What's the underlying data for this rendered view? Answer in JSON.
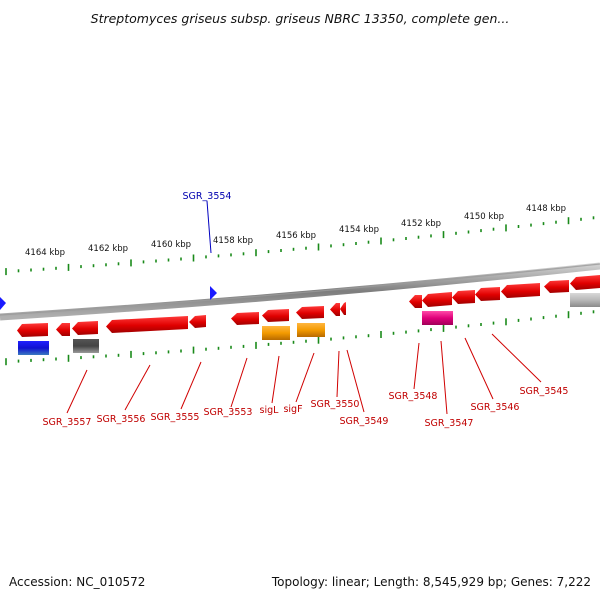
{
  "title": "Streptomyces griseus subsp. griseus NBRC 13350, complete gen...",
  "footer": {
    "accession": "Accession: NC_010572",
    "summary": "Topology: linear; Length: 8,545,929 bp; Genes: 7,222"
  },
  "scale_labels": [
    "4164 kbp",
    "4162 kbp",
    "4160 kbp",
    "4158 kbp",
    "4156 kbp",
    "4154 kbp",
    "4152 kbp",
    "4150 kbp",
    "4148 kbp"
  ],
  "highlighted_gene": "SGR_3554",
  "gene_labels": [
    "SGR_3557",
    "SGR_3556",
    "SGR_3555",
    "SGR_3553",
    "sigL",
    "sigF",
    "SGR_3550",
    "SGR_3549",
    "SGR_3548",
    "SGR_3547",
    "SGR_3546",
    "SGR_3545"
  ],
  "colors": {
    "gene": "#e00000",
    "label_line": "#d00000",
    "highlight": "#0000c0",
    "tick": "#1a8a1a",
    "sigma_genes": "#f39a00",
    "special_gene": "#e0007a",
    "backbone": "#8a8a8a"
  }
}
